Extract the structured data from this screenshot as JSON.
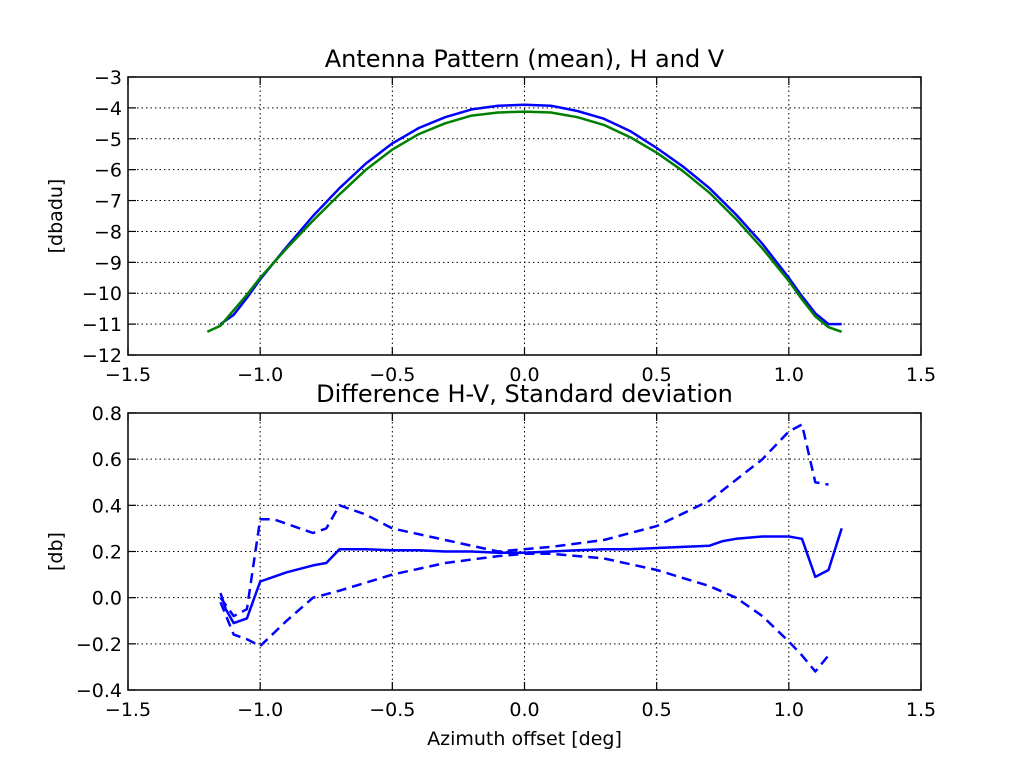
{
  "chart_data": [
    {
      "type": "line",
      "title": "Antenna Pattern (mean), H and V",
      "xlabel": "",
      "ylabel": "[dbadu]",
      "xlim": [
        -1.5,
        1.5
      ],
      "ylim": [
        -12,
        -3
      ],
      "xticks": [
        -1.5,
        -1.0,
        -0.5,
        0.0,
        0.5,
        1.0,
        1.5
      ],
      "yticks": [
        -12,
        -11,
        -10,
        -9,
        -8,
        -7,
        -6,
        -5,
        -4,
        -3
      ],
      "xtick_labels": [
        "−1.5",
        "−1.0",
        "−0.5",
        "0.0",
        "0.5",
        "1.0",
        "1.5"
      ],
      "ytick_labels": [
        "−12",
        "−11",
        "−10",
        "−9",
        "−8",
        "−7",
        "−6",
        "−5",
        "−4",
        "−3"
      ],
      "grid": true,
      "series": [
        {
          "color": "#0000ff",
          "style": "solid",
          "x": [
            -1.15,
            -1.1,
            -1.05,
            -1.0,
            -0.9,
            -0.8,
            -0.7,
            -0.6,
            -0.5,
            -0.4,
            -0.3,
            -0.2,
            -0.1,
            0.0,
            0.1,
            0.2,
            0.3,
            0.4,
            0.5,
            0.6,
            0.7,
            0.8,
            0.9,
            1.0,
            1.05,
            1.1,
            1.15,
            1.2
          ],
          "y": [
            -11.0,
            -10.7,
            -10.15,
            -9.55,
            -8.5,
            -7.5,
            -6.6,
            -5.8,
            -5.15,
            -4.65,
            -4.3,
            -4.05,
            -3.93,
            -3.9,
            -3.93,
            -4.1,
            -4.35,
            -4.75,
            -5.3,
            -5.9,
            -6.6,
            -7.45,
            -8.4,
            -9.5,
            -10.1,
            -10.65,
            -11.0,
            -11.0
          ]
        },
        {
          "color": "#008000",
          "style": "solid",
          "x": [
            -1.2,
            -1.15,
            -1.1,
            -1.05,
            -1.0,
            -0.9,
            -0.8,
            -0.7,
            -0.6,
            -0.5,
            -0.4,
            -0.3,
            -0.2,
            -0.1,
            0.0,
            0.1,
            0.2,
            0.3,
            0.4,
            0.5,
            0.6,
            0.7,
            0.8,
            0.9,
            1.0,
            1.05,
            1.1,
            1.15,
            1.2
          ],
          "y": [
            -11.25,
            -11.05,
            -10.55,
            -10.05,
            -9.5,
            -8.55,
            -7.65,
            -6.8,
            -6.0,
            -5.35,
            -4.85,
            -4.5,
            -4.25,
            -4.15,
            -4.12,
            -4.15,
            -4.3,
            -4.55,
            -4.95,
            -5.45,
            -6.05,
            -6.75,
            -7.6,
            -8.55,
            -9.6,
            -10.2,
            -10.75,
            -11.1,
            -11.25
          ]
        }
      ]
    },
    {
      "type": "line",
      "title": "Difference H-V, Standard deviation",
      "xlabel": "Azimuth offset [deg]",
      "ylabel": "[db]",
      "xlim": [
        -1.5,
        1.5
      ],
      "ylim": [
        -0.4,
        0.8
      ],
      "xticks": [
        -1.5,
        -1.0,
        -0.5,
        0.0,
        0.5,
        1.0,
        1.5
      ],
      "yticks": [
        -0.4,
        -0.2,
        0.0,
        0.2,
        0.4,
        0.6,
        0.8
      ],
      "xtick_labels": [
        "−1.5",
        "−1.0",
        "−0.5",
        "0.0",
        "0.5",
        "1.0",
        "1.5"
      ],
      "ytick_labels": [
        "−0.4",
        "−0.2",
        "0.0",
        "0.2",
        "0.4",
        "0.6",
        "0.8"
      ],
      "grid": true,
      "series": [
        {
          "color": "#0000ff",
          "style": "solid",
          "x": [
            -1.15,
            -1.13,
            -1.1,
            -1.05,
            -1.0,
            -0.95,
            -0.9,
            -0.8,
            -0.75,
            -0.7,
            -0.6,
            -0.5,
            -0.4,
            -0.3,
            -0.2,
            -0.1,
            0.0,
            0.1,
            0.2,
            0.3,
            0.4,
            0.5,
            0.6,
            0.7,
            0.75,
            0.8,
            0.9,
            1.0,
            1.05,
            1.1,
            1.15,
            1.2
          ],
          "y": [
            0.02,
            -0.05,
            -0.11,
            -0.09,
            0.07,
            0.09,
            0.11,
            0.14,
            0.15,
            0.21,
            0.21,
            0.205,
            0.205,
            0.2,
            0.2,
            0.195,
            0.195,
            0.2,
            0.205,
            0.21,
            0.21,
            0.215,
            0.22,
            0.225,
            0.245,
            0.255,
            0.265,
            0.265,
            0.255,
            0.09,
            0.12,
            0.3
          ]
        },
        {
          "color": "#0000ff",
          "style": "dashed",
          "x": [
            -1.15,
            -1.1,
            -1.05,
            -1.0,
            -0.95,
            -0.8,
            -0.75,
            -0.7,
            -0.6,
            -0.5,
            -0.3,
            -0.1,
            0.0,
            0.1,
            0.3,
            0.5,
            0.7,
            0.8,
            0.9,
            1.0,
            1.05,
            1.1,
            1.15
          ],
          "y": [
            0.0,
            -0.08,
            -0.05,
            0.34,
            0.34,
            0.28,
            0.3,
            0.4,
            0.36,
            0.3,
            0.25,
            0.2,
            0.21,
            0.22,
            0.25,
            0.31,
            0.42,
            0.51,
            0.6,
            0.72,
            0.75,
            0.5,
            0.49
          ]
        },
        {
          "color": "#0000ff",
          "style": "dashed",
          "x": [
            -1.15,
            -1.1,
            -1.05,
            -1.0,
            -0.9,
            -0.8,
            -0.7,
            -0.5,
            -0.3,
            -0.1,
            0.0,
            0.1,
            0.3,
            0.5,
            0.7,
            0.8,
            0.9,
            1.0,
            1.05,
            1.1,
            1.15
          ],
          "y": [
            -0.02,
            -0.16,
            -0.18,
            -0.21,
            -0.1,
            0.0,
            0.03,
            0.1,
            0.15,
            0.18,
            0.19,
            0.19,
            0.17,
            0.12,
            0.05,
            0.0,
            -0.08,
            -0.19,
            -0.25,
            -0.32,
            -0.25
          ]
        }
      ]
    }
  ]
}
